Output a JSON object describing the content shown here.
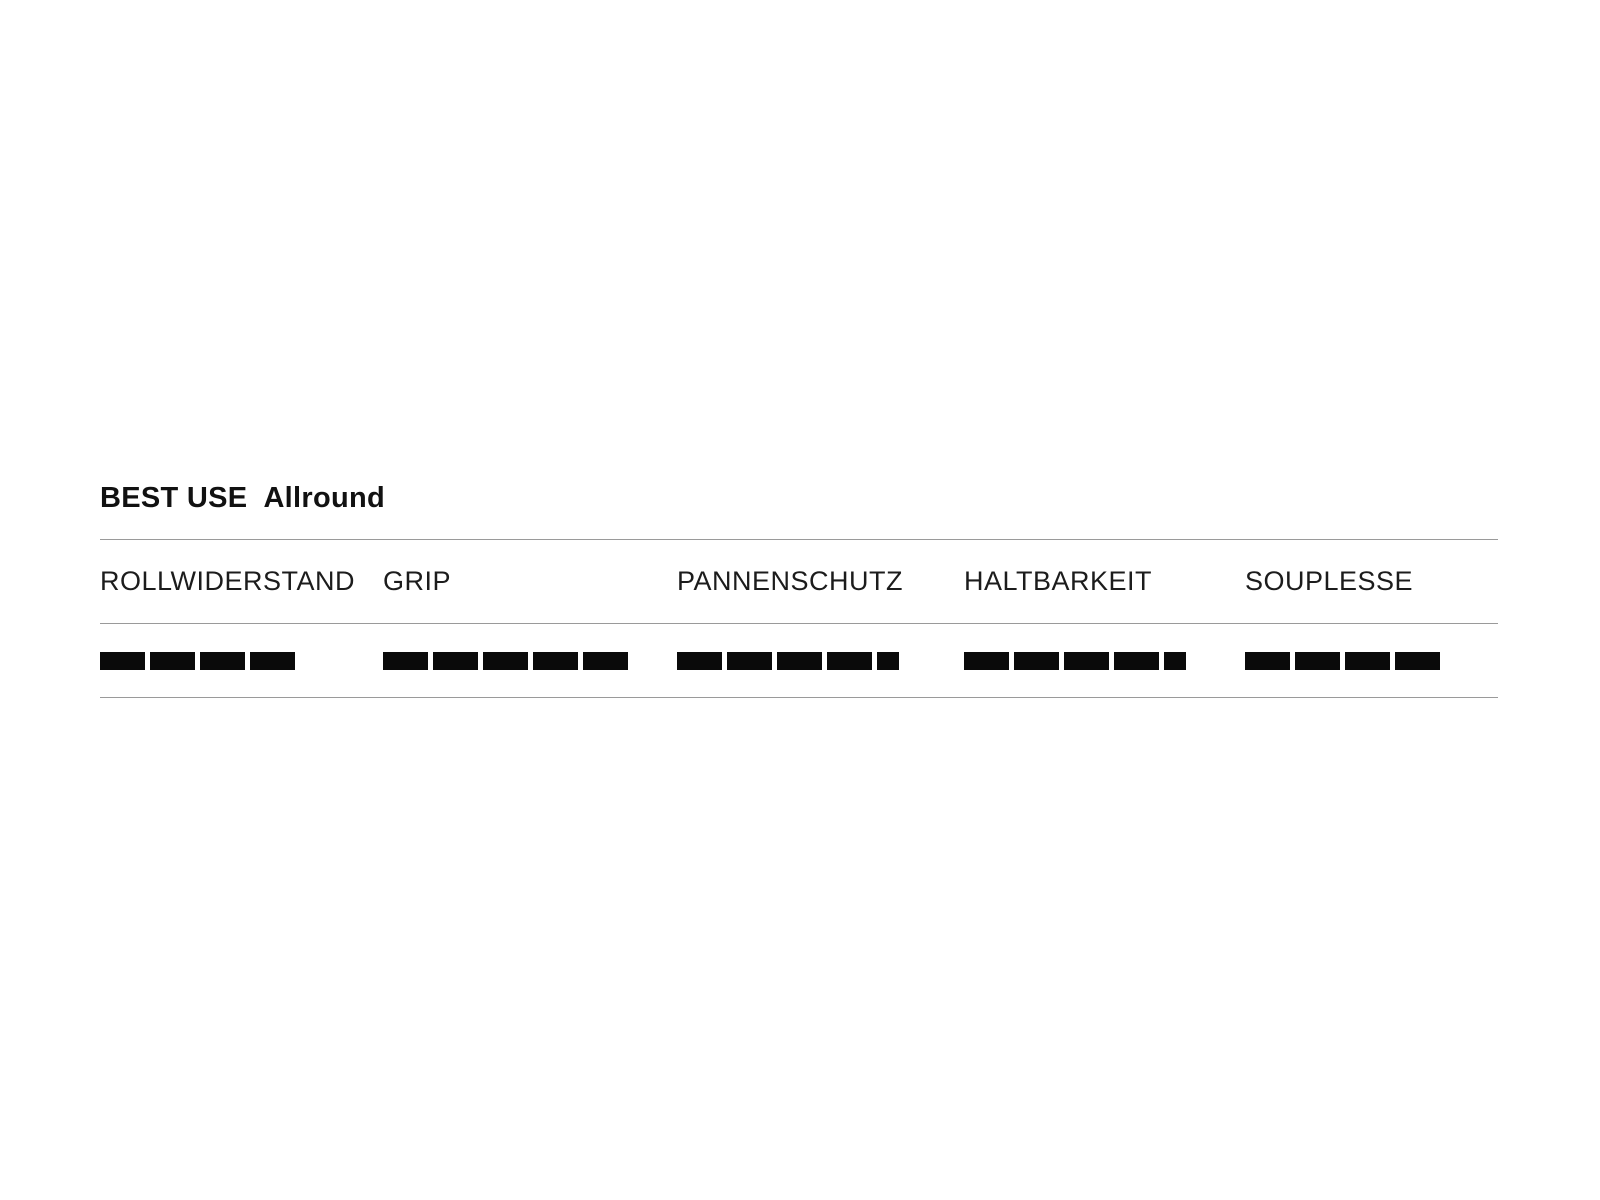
{
  "title_row": {
    "label": "BEST USE",
    "value": "Allround"
  },
  "chart_data": {
    "type": "bar",
    "title": "BEST USE Allround",
    "categories": [
      "ROLLWIDERSTAND",
      "GRIP",
      "PANNENSCHUTZ",
      "HALTBARKEIT",
      "SOUPLESSE"
    ],
    "values": [
      4,
      5,
      4.5,
      4.5,
      4
    ],
    "value_encoding": "count of filled black segments; a half-width segment = 0.5",
    "xlabel": "",
    "ylabel": "",
    "legend_position": "none",
    "grid": "off"
  },
  "colors": {
    "background": "#ffffff",
    "segment": "#0a0a0a",
    "rule": "#9a9a9a",
    "heading_text": "#111111",
    "label_text": "#1c1c1c"
  }
}
